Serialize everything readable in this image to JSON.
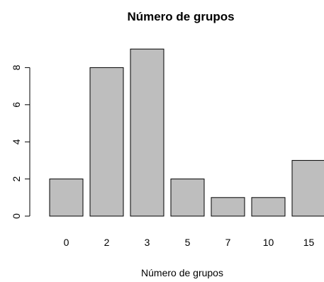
{
  "chart_data": {
    "type": "bar",
    "title": "Número de grupos",
    "xlabel": "Número de grupos",
    "ylabel": "",
    "categories": [
      "0",
      "2",
      "3",
      "5",
      "7",
      "10",
      "15"
    ],
    "values": [
      2,
      8,
      9,
      2,
      1,
      1,
      3
    ],
    "ylim": [
      0,
      9
    ],
    "yticks": [
      0,
      2,
      4,
      6,
      8
    ],
    "bar_color": "#bebebe",
    "grid": false,
    "legend": "none"
  }
}
